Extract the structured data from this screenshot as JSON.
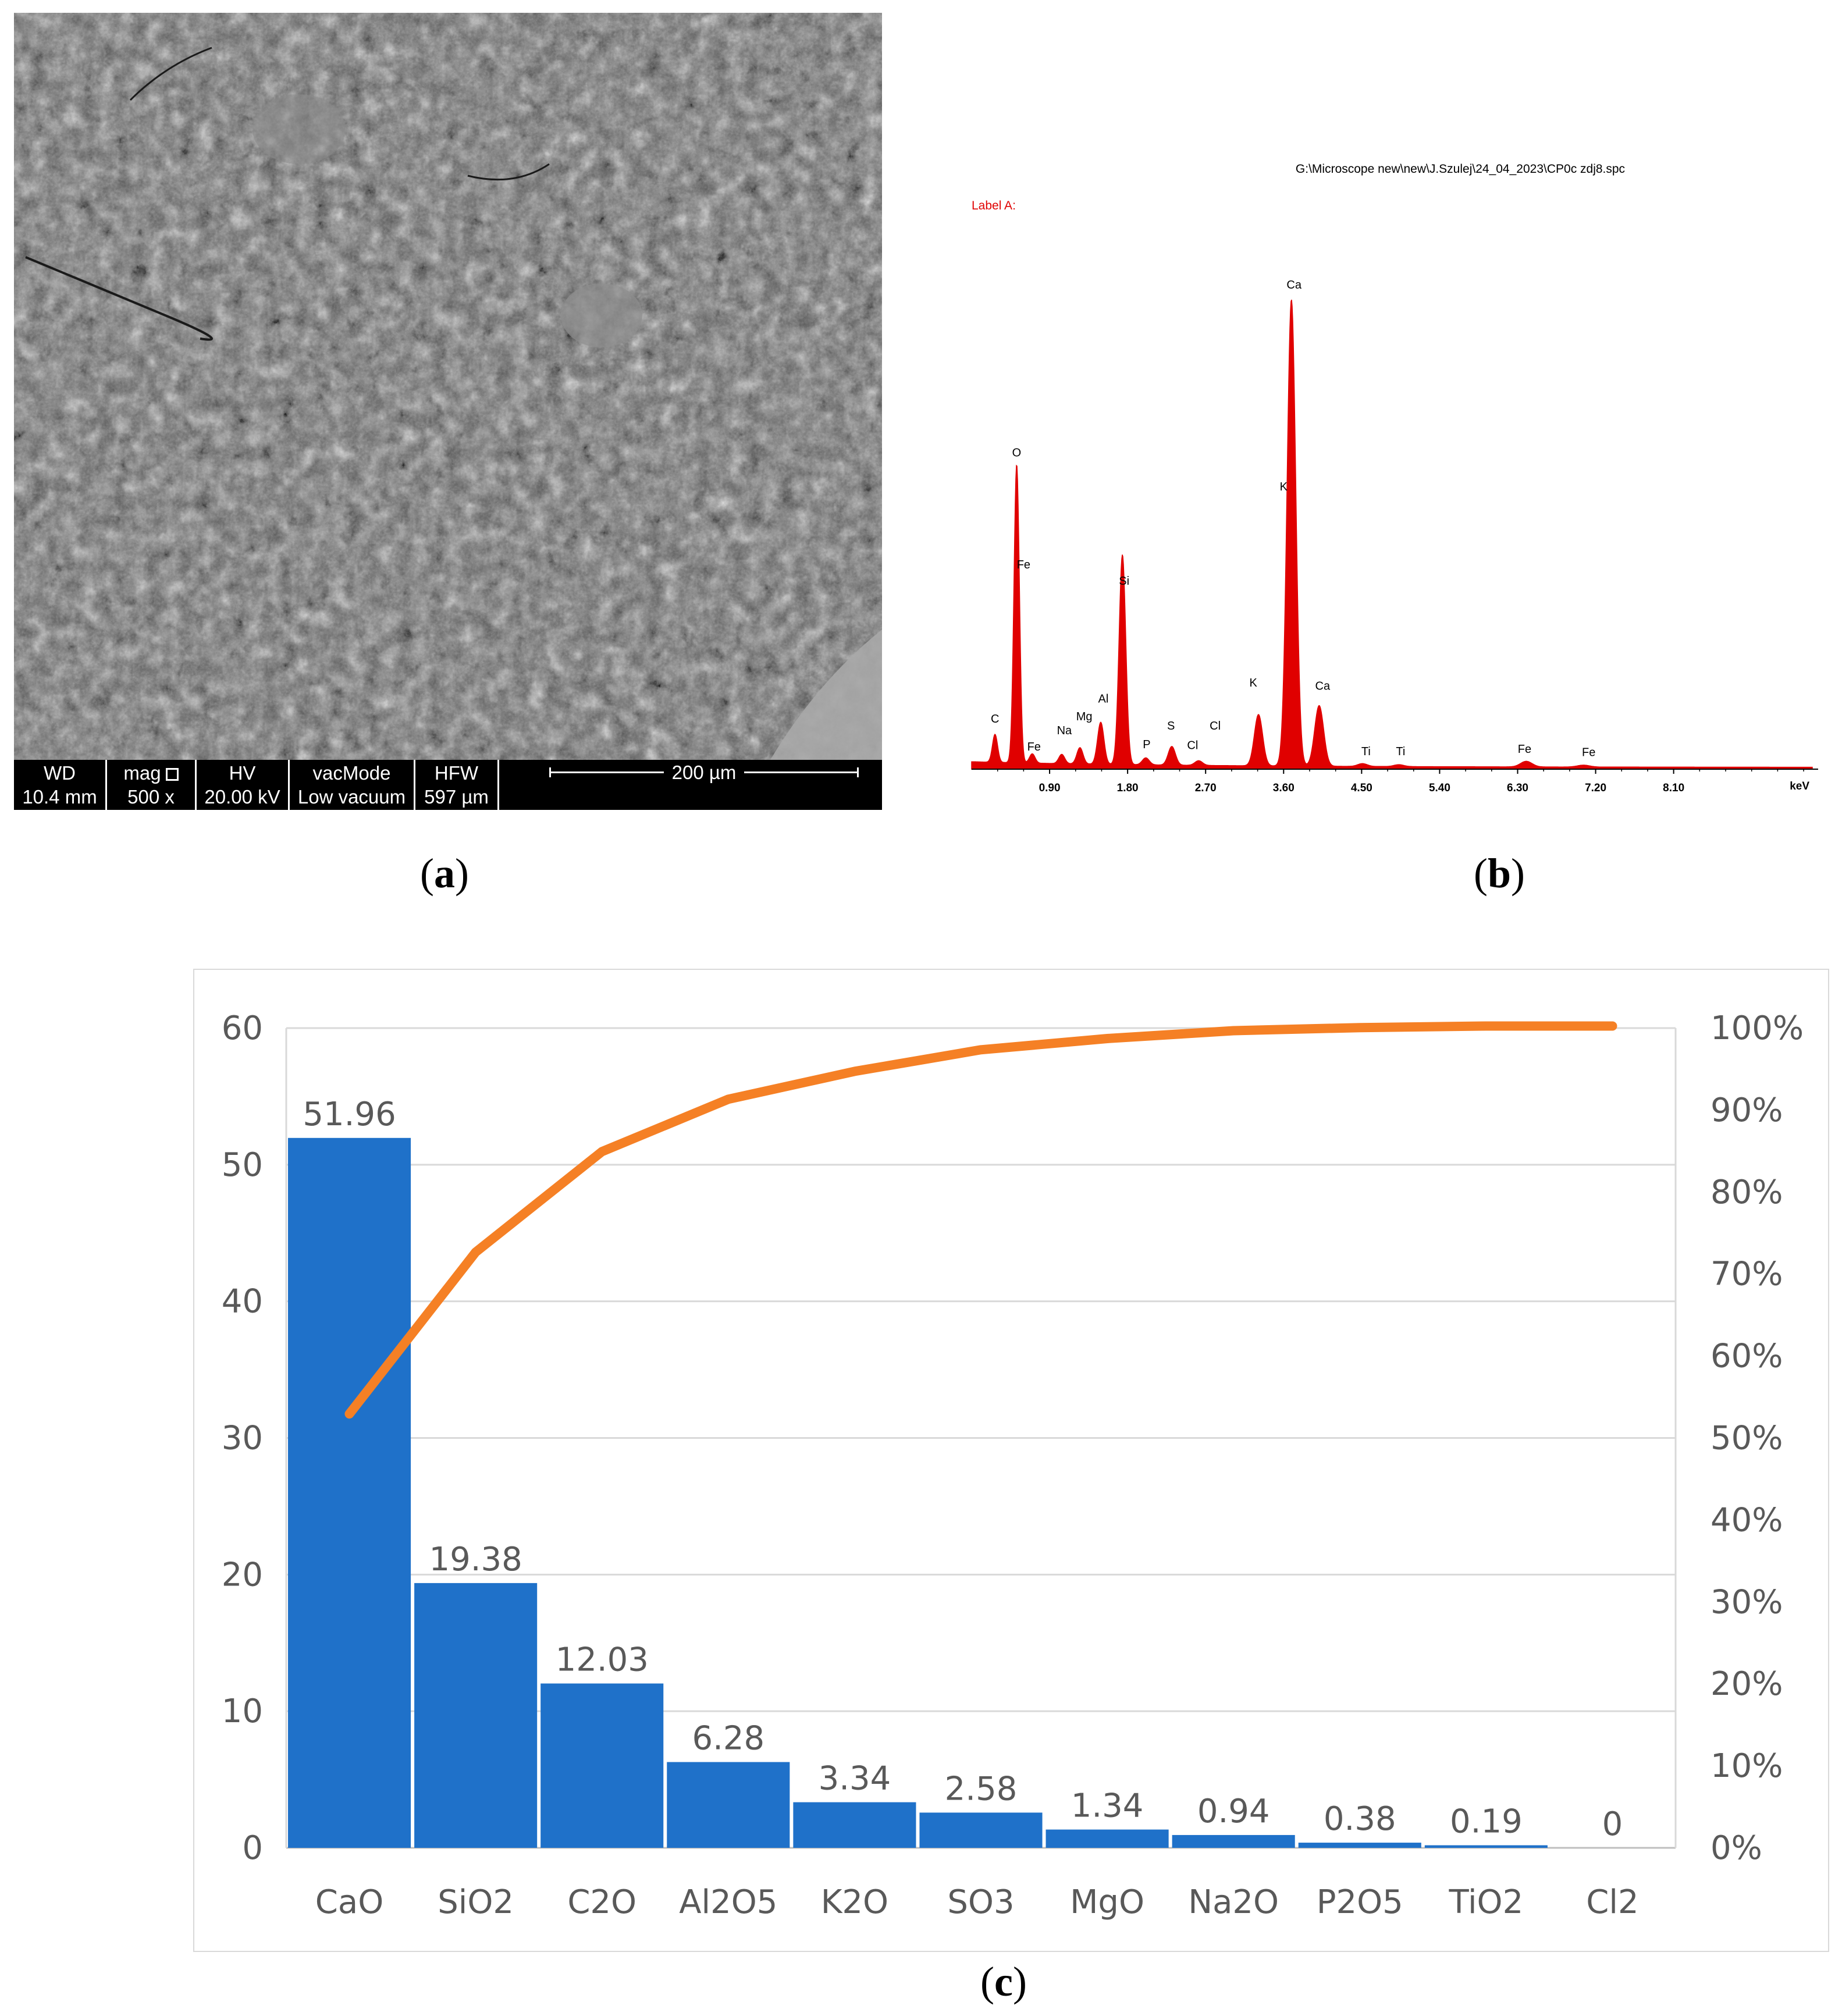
{
  "sem": {
    "cells": [
      {
        "head": "WD",
        "val": "10.4 mm"
      },
      {
        "head": "mag",
        "val": "500 x"
      },
      {
        "head": "HV",
        "val": "20.00 kV"
      },
      {
        "head": "vacMode",
        "val": "Low vacuum"
      },
      {
        "head": "HFW",
        "val": "597 µm"
      }
    ],
    "scale_label": "200 µm"
  },
  "labels": {
    "a": "a",
    "b": "b",
    "c": "c"
  },
  "chart_data": [
    {
      "type": "line",
      "title": "G:\\Microscope new\\new\\J.Szulej\\24_04_2023\\CP0c zdj8.spc",
      "subtitle": "Label A:",
      "xlabel": "keV",
      "ylabel": "",
      "xlim": [
        0.0,
        9.7
      ],
      "x_ticks": [
        "0.90",
        "1.80",
        "2.70",
        "3.60",
        "4.50",
        "5.40",
        "6.30",
        "7.20",
        "8.10"
      ],
      "color": "#e00000",
      "peaks": [
        {
          "label": "C",
          "x": 0.27,
          "height": 0.06
        },
        {
          "label": "O",
          "x": 0.52,
          "height": 0.64
        },
        {
          "label": "Fe",
          "x": 0.7,
          "height": 0.02
        },
        {
          "label": "Na",
          "x": 1.04,
          "height": 0.02
        },
        {
          "label": "Mg",
          "x": 1.25,
          "height": 0.035
        },
        {
          "label": "Al",
          "x": 1.49,
          "height": 0.09
        },
        {
          "label": "Si",
          "x": 1.74,
          "height": 0.45
        },
        {
          "label": "P",
          "x": 2.01,
          "height": 0.015
        },
        {
          "label": "S",
          "x": 2.31,
          "height": 0.04
        },
        {
          "label": "Cl",
          "x": 2.62,
          "height": 0.01
        },
        {
          "label": "K",
          "x": 3.31,
          "height": 0.11
        },
        {
          "label": "Ca",
          "x": 3.69,
          "height": 1.0
        },
        {
          "label": "Ca",
          "x": 4.01,
          "height": 0.13
        },
        {
          "label": "Ti",
          "x": 4.51,
          "height": 0.006
        },
        {
          "label": "Ti",
          "x": 4.93,
          "height": 0.004
        },
        {
          "label": "Fe",
          "x": 6.4,
          "height": 0.012
        },
        {
          "label": "Fe",
          "x": 7.06,
          "height": 0.004
        }
      ],
      "peak_labels": [
        {
          "text": "C",
          "x": 0.27,
          "level": 0.09
        },
        {
          "text": "O",
          "x": 0.52,
          "level": 0.66
        },
        {
          "text": "Fe",
          "x": 0.6,
          "level": 0.42
        },
        {
          "text": "Fe",
          "x": 0.72,
          "level": 0.03
        },
        {
          "text": "Na",
          "x": 1.07,
          "level": 0.065
        },
        {
          "text": "Mg",
          "x": 1.3,
          "level": 0.095
        },
        {
          "text": "Al",
          "x": 1.52,
          "level": 0.133
        },
        {
          "text": "Si",
          "x": 1.76,
          "level": 0.385
        },
        {
          "text": "P",
          "x": 2.02,
          "level": 0.035
        },
        {
          "text": "S",
          "x": 2.3,
          "level": 0.075
        },
        {
          "text": "Cl",
          "x": 2.55,
          "level": 0.033
        },
        {
          "text": "Cl",
          "x": 2.81,
          "level": 0.075
        },
        {
          "text": "K",
          "x": 3.25,
          "level": 0.167
        },
        {
          "text": "K",
          "x": 3.6,
          "level": 0.587
        },
        {
          "text": "Ca",
          "x": 3.72,
          "level": 1.02
        },
        {
          "text": "Ca",
          "x": 4.05,
          "level": 0.16
        },
        {
          "text": "Ti",
          "x": 4.55,
          "level": 0.02
        },
        {
          "text": "Ti",
          "x": 4.95,
          "level": 0.02
        },
        {
          "text": "Fe",
          "x": 6.38,
          "level": 0.025
        },
        {
          "text": "Fe",
          "x": 7.12,
          "level": 0.018
        }
      ]
    },
    {
      "type": "bar",
      "categories": [
        "CaO",
        "SiO2",
        "C2O",
        "Al2O5",
        "K2O",
        "SO3",
        "MgO",
        "Na2O",
        "P2O5",
        "TiO2",
        "Cl2"
      ],
      "values": [
        51.96,
        19.38,
        12.03,
        6.28,
        3.34,
        2.58,
        1.34,
        0.94,
        0.38,
        0.19,
        0
      ],
      "data_labels": [
        "51.96",
        "19.38",
        "12.03",
        "6.28",
        "3.34",
        "2.58",
        "1.34",
        "0.94",
        "0.38",
        "0.19",
        "0"
      ],
      "ylim": [
        0,
        60
      ],
      "y_ticks": [
        "0",
        "10",
        "20",
        "30",
        "40",
        "50",
        "60"
      ],
      "y2lim": [
        0,
        100
      ],
      "y2_ticks": [
        "0%",
        "10%",
        "20%",
        "30%",
        "40%",
        "50%",
        "60%",
        "70%",
        "80%",
        "90%",
        "100%"
      ],
      "cumulative_percent": [
        52.93,
        72.67,
        84.93,
        91.32,
        94.72,
        97.35,
        98.72,
        99.68,
        100.06,
        100.25,
        100.25
      ],
      "bar_color": "#1f71c9",
      "line_color": "#f58025",
      "grid": true
    }
  ]
}
